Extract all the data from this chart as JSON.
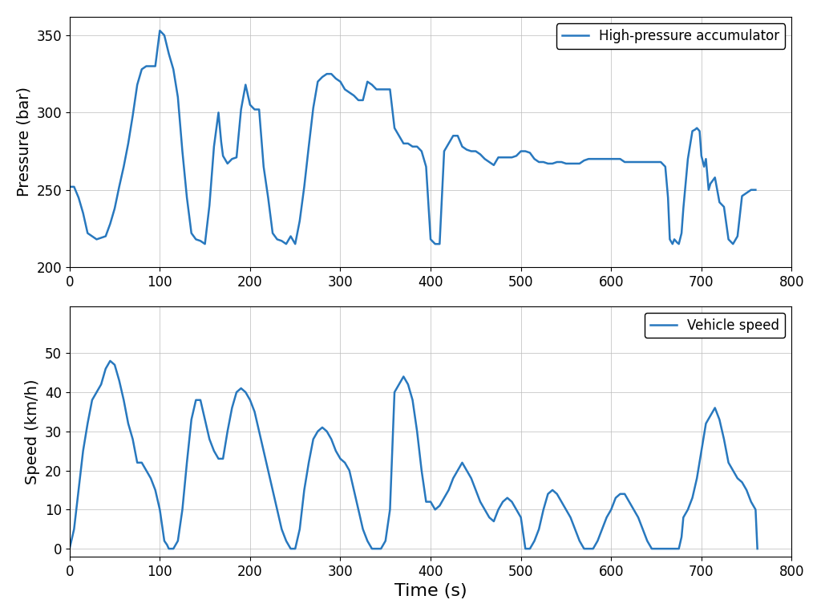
{
  "pressure_time": [
    0,
    5,
    10,
    15,
    20,
    25,
    30,
    35,
    40,
    45,
    50,
    55,
    60,
    65,
    70,
    75,
    80,
    85,
    90,
    95,
    100,
    105,
    110,
    115,
    120,
    125,
    130,
    135,
    140,
    145,
    150,
    155,
    160,
    165,
    168,
    170,
    175,
    180,
    185,
    190,
    195,
    200,
    205,
    210,
    215,
    220,
    225,
    230,
    235,
    240,
    245,
    250,
    255,
    260,
    265,
    270,
    275,
    280,
    285,
    290,
    295,
    300,
    305,
    310,
    315,
    320,
    325,
    330,
    335,
    340,
    345,
    350,
    355,
    360,
    365,
    370,
    375,
    380,
    385,
    390,
    395,
    400,
    405,
    410,
    415,
    420,
    425,
    430,
    435,
    440,
    445,
    450,
    455,
    460,
    465,
    470,
    475,
    480,
    485,
    490,
    495,
    500,
    505,
    510,
    515,
    520,
    525,
    530,
    535,
    540,
    545,
    550,
    555,
    560,
    565,
    570,
    575,
    580,
    585,
    590,
    595,
    600,
    605,
    610,
    615,
    620,
    625,
    630,
    635,
    640,
    645,
    650,
    655,
    660,
    663,
    665,
    668,
    670,
    673,
    675,
    678,
    680,
    685,
    690,
    693,
    695,
    698,
    700,
    703,
    705,
    708,
    710,
    715,
    720,
    725,
    730,
    735,
    740,
    745,
    750,
    755,
    760
  ],
  "pressure_values": [
    252,
    252,
    245,
    235,
    222,
    220,
    218,
    219,
    220,
    228,
    238,
    252,
    265,
    280,
    298,
    318,
    328,
    330,
    330,
    330,
    353,
    350,
    338,
    328,
    310,
    275,
    245,
    222,
    218,
    217,
    215,
    240,
    278,
    300,
    281,
    272,
    267,
    270,
    271,
    302,
    318,
    305,
    302,
    302,
    265,
    245,
    222,
    218,
    217,
    215,
    220,
    215,
    230,
    252,
    278,
    303,
    320,
    323,
    325,
    325,
    322,
    320,
    315,
    313,
    311,
    308,
    308,
    320,
    318,
    315,
    315,
    315,
    315,
    290,
    285,
    280,
    280,
    278,
    278,
    275,
    265,
    218,
    215,
    215,
    275,
    280,
    285,
    285,
    278,
    276,
    275,
    275,
    273,
    270,
    268,
    266,
    271,
    271,
    271,
    271,
    272,
    275,
    275,
    274,
    270,
    268,
    268,
    267,
    267,
    268,
    268,
    267,
    267,
    267,
    267,
    269,
    270,
    270,
    270,
    270,
    270,
    270,
    270,
    270,
    268,
    268,
    268,
    268,
    268,
    268,
    268,
    268,
    268,
    265,
    245,
    218,
    215,
    218,
    216,
    215,
    222,
    238,
    270,
    288,
    289,
    290,
    288,
    272,
    265,
    270,
    250,
    254,
    258,
    242,
    239,
    218,
    215,
    220,
    246,
    248,
    250,
    250
  ],
  "speed_time": [
    0,
    5,
    10,
    15,
    20,
    25,
    30,
    35,
    40,
    45,
    50,
    55,
    60,
    65,
    70,
    75,
    80,
    85,
    90,
    95,
    100,
    105,
    108,
    110,
    115,
    120,
    125,
    130,
    135,
    140,
    145,
    150,
    155,
    160,
    165,
    170,
    175,
    180,
    185,
    190,
    195,
    200,
    205,
    210,
    215,
    220,
    225,
    230,
    235,
    240,
    245,
    250,
    255,
    260,
    265,
    270,
    275,
    280,
    285,
    290,
    295,
    300,
    305,
    310,
    315,
    320,
    325,
    330,
    335,
    340,
    345,
    350,
    355,
    360,
    365,
    370,
    375,
    380,
    385,
    390,
    395,
    400,
    405,
    410,
    415,
    420,
    425,
    430,
    435,
    440,
    445,
    450,
    455,
    460,
    465,
    470,
    475,
    480,
    485,
    490,
    495,
    500,
    505,
    510,
    515,
    520,
    525,
    530,
    535,
    540,
    545,
    550,
    555,
    560,
    565,
    570,
    575,
    580,
    585,
    590,
    595,
    600,
    605,
    610,
    615,
    620,
    625,
    630,
    635,
    640,
    645,
    650,
    655,
    660,
    665,
    668,
    670,
    673,
    675,
    678,
    680,
    685,
    690,
    695,
    700,
    705,
    710,
    715,
    720,
    725,
    730,
    735,
    740,
    745,
    750,
    755,
    760,
    762
  ],
  "speed_values": [
    0,
    5,
    15,
    25,
    32,
    38,
    40,
    42,
    46,
    48,
    47,
    43,
    38,
    32,
    28,
    22,
    22,
    20,
    18,
    15,
    10,
    2,
    1,
    0,
    0,
    2,
    10,
    22,
    33,
    38,
    38,
    33,
    28,
    25,
    23,
    23,
    30,
    36,
    40,
    41,
    40,
    38,
    35,
    30,
    25,
    20,
    15,
    10,
    5,
    2,
    0,
    0,
    5,
    15,
    22,
    28,
    30,
    31,
    30,
    28,
    25,
    23,
    22,
    20,
    15,
    10,
    5,
    2,
    0,
    0,
    0,
    2,
    10,
    40,
    42,
    44,
    42,
    38,
    30,
    20,
    12,
    12,
    10,
    11,
    13,
    15,
    18,
    20,
    22,
    20,
    18,
    15,
    12,
    10,
    8,
    7,
    10,
    12,
    13,
    12,
    10,
    8,
    0,
    0,
    2,
    5,
    10,
    14,
    15,
    14,
    12,
    10,
    8,
    5,
    2,
    0,
    0,
    0,
    2,
    5,
    8,
    10,
    13,
    14,
    14,
    12,
    10,
    8,
    5,
    2,
    0,
    0,
    0,
    0,
    0,
    0,
    0,
    0,
    0,
    3,
    8,
    10,
    13,
    18,
    25,
    32,
    34,
    36,
    33,
    28,
    22,
    20,
    18,
    17,
    15,
    12,
    10,
    0
  ],
  "line_color": "#2878BE",
  "line_width": 1.8,
  "grid_color": "#BBBBBB",
  "background_color": "#FFFFFF",
  "pressure_ylabel": "Pressure (bar)",
  "pressure_legend": "High-pressure accumulator",
  "speed_ylabel": "Speed (km/h)",
  "speed_legend": "Vehicle speed",
  "xlabel": "Time (s)",
  "pressure_ylim": [
    200,
    362
  ],
  "pressure_yticks": [
    200,
    250,
    300,
    350
  ],
  "speed_ylim": [
    -2,
    62
  ],
  "speed_yticks": [
    0,
    10,
    20,
    30,
    40,
    50
  ],
  "xlim": [
    0,
    800
  ],
  "xticks": [
    0,
    100,
    200,
    300,
    400,
    500,
    600,
    700,
    800
  ],
  "label_fontsize": 14,
  "tick_fontsize": 12,
  "legend_fontsize": 12,
  "xlabel_fontsize": 16
}
